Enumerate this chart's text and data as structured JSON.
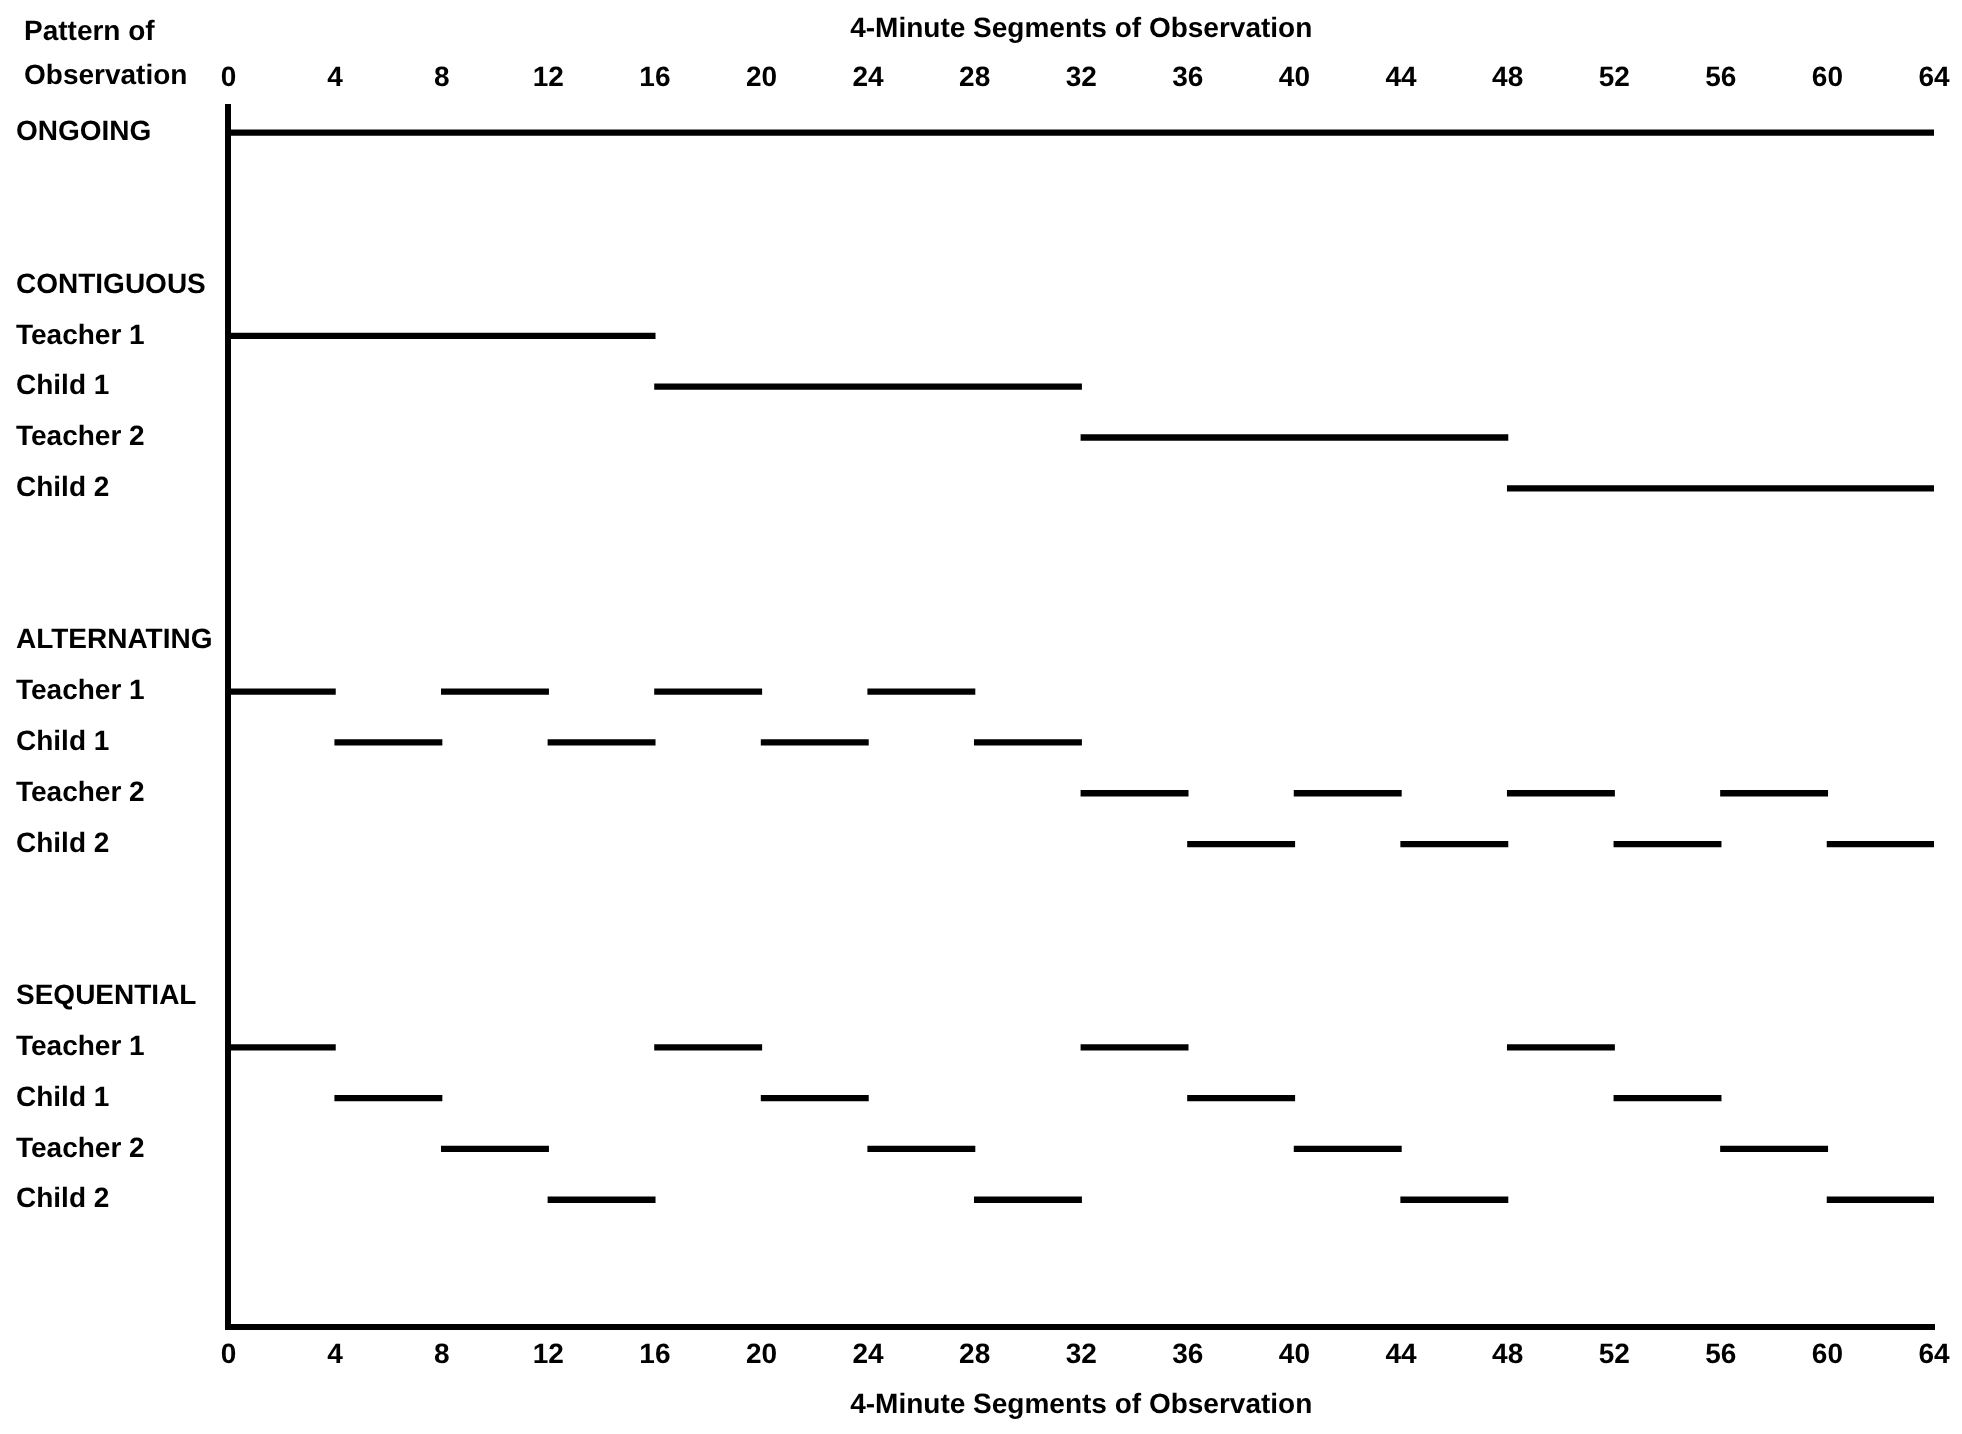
{
  "chart_data": {
    "type": "bar",
    "orientation": "horizontal",
    "ylabel": "Pattern of Observation",
    "xlabel": "4-Minute Segments of Observation",
    "x2label": "4-Minute Segments of Observation",
    "categories": [
      "ONGOING",
      null,
      null,
      "CONTIGUOUS",
      "Teacher 1",
      "Child 1",
      "Teacher 2",
      "Child 2",
      null,
      null,
      "ALTERNATING",
      "Teacher 1",
      "Child 1",
      "Teacher 2",
      "Child 2",
      null,
      null,
      "SEQUENTIAL",
      "Teacher 1",
      "Child 1",
      "Teacher 2",
      "Child 2",
      null,
      null
    ],
    "series": [
      {
        "color": "#000000",
        "values": [
          64,
          null,
          null,
          null,
          16,
          16,
          16,
          16,
          null,
          null,
          null,
          4,
          4,
          4,
          4,
          null,
          null,
          null,
          4,
          4,
          4,
          4,
          null,
          null
        ],
        "base": [
          0,
          null,
          null,
          null,
          0,
          16,
          32,
          48,
          null,
          null,
          null,
          0,
          4,
          32,
          36,
          null,
          null,
          null,
          0,
          4,
          8,
          12,
          null,
          null
        ]
      },
      {
        "color": "#000000",
        "values": [
          null,
          null,
          null,
          null,
          null,
          null,
          null,
          null,
          null,
          null,
          null,
          4,
          4,
          4,
          4,
          null,
          null,
          null,
          4,
          4,
          4,
          4,
          null,
          null
        ],
        "base": [
          null,
          null,
          null,
          null,
          null,
          null,
          null,
          null,
          null,
          null,
          null,
          8,
          12,
          40,
          44,
          null,
          null,
          null,
          16,
          20,
          24,
          28,
          null,
          null
        ]
      },
      {
        "color": "#000000",
        "values": [
          null,
          null,
          null,
          null,
          null,
          null,
          null,
          null,
          null,
          null,
          null,
          4,
          4,
          4,
          4,
          null,
          null,
          null,
          4,
          4,
          4,
          4,
          null,
          null
        ],
        "base": [
          null,
          null,
          null,
          null,
          null,
          null,
          null,
          null,
          null,
          null,
          null,
          16,
          20,
          48,
          52,
          null,
          null,
          null,
          32,
          36,
          40,
          44,
          null,
          null
        ]
      },
      {
        "color": "#000000",
        "values": [
          null,
          null,
          null,
          null,
          null,
          null,
          null,
          null,
          null,
          null,
          null,
          4,
          4,
          4,
          4,
          null,
          null,
          null,
          4,
          4,
          4,
          4,
          null,
          null
        ],
        "base": [
          null,
          null,
          null,
          null,
          null,
          null,
          null,
          null,
          null,
          null,
          null,
          24,
          28,
          56,
          60,
          null,
          null,
          null,
          48,
          52,
          56,
          60,
          null,
          null
        ]
      }
    ],
    "xlim": [
      0,
      64
    ],
    "xticks": [
      0,
      4,
      8,
      12,
      16,
      20,
      24,
      28,
      32,
      36,
      40,
      44,
      48,
      52,
      56,
      60,
      64
    ],
    "x2lim": [
      0,
      64
    ],
    "x2ticks": [
      0,
      4,
      8,
      12,
      16,
      20,
      24,
      28,
      32,
      36,
      40,
      44,
      48,
      52,
      56,
      60,
      64
    ],
    "grid": false,
    "legend": false
  }
}
